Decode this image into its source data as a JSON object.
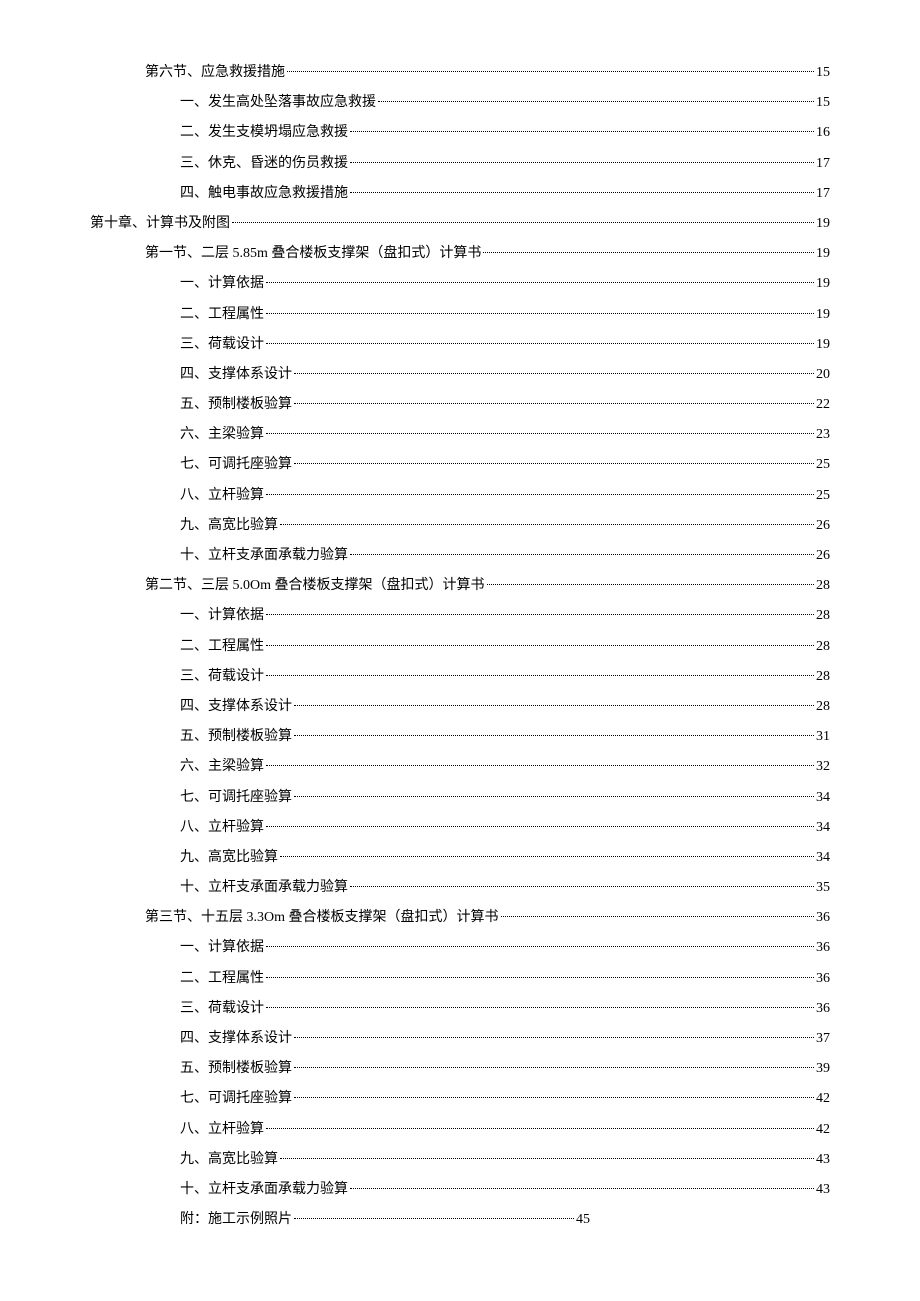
{
  "toc": {
    "background_color": "#ffffff",
    "text_color": "#000000",
    "font_family": "SimSun",
    "font_size": 14,
    "line_height": 1.8,
    "entries": [
      {
        "indent": 1,
        "title": "第六节、应急救援措施",
        "page": "15"
      },
      {
        "indent": 2,
        "title": "一、发生高处坠落事故应急救援",
        "page": "15"
      },
      {
        "indent": 2,
        "title": "二、发生支模坍塌应急救援",
        "page": "16"
      },
      {
        "indent": 2,
        "title": "三、休克、昏迷的伤员救援",
        "page": "17"
      },
      {
        "indent": 2,
        "title": "四、触电事故应急救援措施",
        "page": "17"
      },
      {
        "indent": 0,
        "title": "第十章、计算书及附图",
        "page": "19"
      },
      {
        "indent": 1,
        "title": "第一节、二层 5.85m 叠合楼板支撑架（盘扣式）计算书",
        "page": "19"
      },
      {
        "indent": 2,
        "title": "一、计算依据",
        "page": "19"
      },
      {
        "indent": 2,
        "title": "二、工程属性",
        "page": "19"
      },
      {
        "indent": 2,
        "title": "三、荷载设计",
        "page": "19"
      },
      {
        "indent": 2,
        "title": "四、支撑体系设计",
        "page": "20"
      },
      {
        "indent": 2,
        "title": "五、预制楼板验算",
        "page": "22"
      },
      {
        "indent": 2,
        "title": "六、主梁验算",
        "page": "23"
      },
      {
        "indent": 2,
        "title": "七、可调托座验算",
        "page": "25"
      },
      {
        "indent": 2,
        "title": "八、立杆验算",
        "page": "25"
      },
      {
        "indent": 2,
        "title": "九、高宽比验算",
        "page": "26"
      },
      {
        "indent": 2,
        "title": "十、立杆支承面承载力验算",
        "page": "26"
      },
      {
        "indent": 1,
        "title": "第二节、三层 5.0Om 叠合楼板支撑架（盘扣式）计算书",
        "page": "28"
      },
      {
        "indent": 2,
        "title": "一、计算依据",
        "page": "28"
      },
      {
        "indent": 2,
        "title": "二、工程属性",
        "page": "28"
      },
      {
        "indent": 2,
        "title": "三、荷载设计",
        "page": "28"
      },
      {
        "indent": 2,
        "title": "四、支撑体系设计",
        "page": "28"
      },
      {
        "indent": 2,
        "title": "五、预制楼板验算",
        "page": "31"
      },
      {
        "indent": 2,
        "title": "六、主梁验算",
        "page": "32"
      },
      {
        "indent": 2,
        "title": "七、可调托座验算",
        "page": "34"
      },
      {
        "indent": 2,
        "title": "八、立杆验算",
        "page": "34"
      },
      {
        "indent": 2,
        "title": "九、高宽比验算",
        "page": "34"
      },
      {
        "indent": 2,
        "title": "十、立杆支承面承载力验算",
        "page": "35"
      },
      {
        "indent": 1,
        "title": "第三节、十五层 3.3Om 叠合楼板支撑架（盘扣式）计算书",
        "page": "36"
      },
      {
        "indent": 2,
        "title": "一、计算依据",
        "page": "36"
      },
      {
        "indent": 2,
        "title": "二、工程属性",
        "page": "36"
      },
      {
        "indent": 2,
        "title": "三、荷载设计",
        "page": "36"
      },
      {
        "indent": 2,
        "title": "四、支撑体系设计",
        "page": "37"
      },
      {
        "indent": 2,
        "title": "五、预制楼板验算",
        "page": "39"
      },
      {
        "indent": 2,
        "title": "七、可调托座验算",
        "page": "42"
      },
      {
        "indent": 2,
        "title": "八、立杆验算",
        "page": "42"
      },
      {
        "indent": 2,
        "title": "九、高宽比验算",
        "page": "43"
      },
      {
        "indent": 2,
        "title": "十、立杆支承面承载力验算",
        "page": "43"
      },
      {
        "indent": 2,
        "title": "附：施工示例照片",
        "page": "45",
        "short_dots": true
      }
    ]
  }
}
